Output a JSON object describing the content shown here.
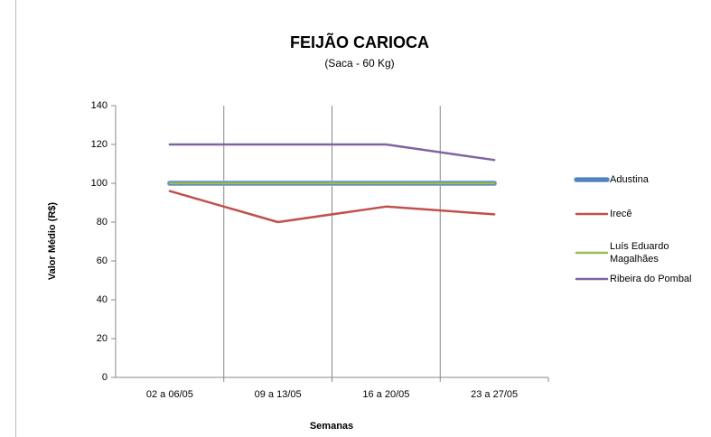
{
  "chart_data": {
    "type": "line",
    "title": "FEIJÃO CARIOCA",
    "subtitle": "(Saca - 60 Kg)",
    "x_label": "Semanas",
    "y_label": "Valor Médio (R$)",
    "categories": [
      "02 a 06/05",
      "09 a 13/05",
      "16 a 20/05",
      "23 a 27/05"
    ],
    "series": [
      {
        "name": "Adustina",
        "color": "#4f81bd",
        "values": [
          100,
          100,
          100,
          100
        ]
      },
      {
        "name": "Irecê",
        "color": "#c0504d",
        "values": [
          96,
          80,
          88,
          84
        ]
      },
      {
        "name": "Luís Eduardo Magalhães",
        "color": "#9bbb59",
        "values": [
          100,
          100,
          100,
          100
        ]
      },
      {
        "name": "Ribeira do Pombal",
        "color": "#8064a2",
        "values": [
          120,
          120,
          120,
          112
        ]
      }
    ],
    "ylim": [
      0,
      140
    ],
    "yticks": [
      0,
      20,
      40,
      60,
      80,
      100,
      120,
      140
    ],
    "legend": "right"
  }
}
